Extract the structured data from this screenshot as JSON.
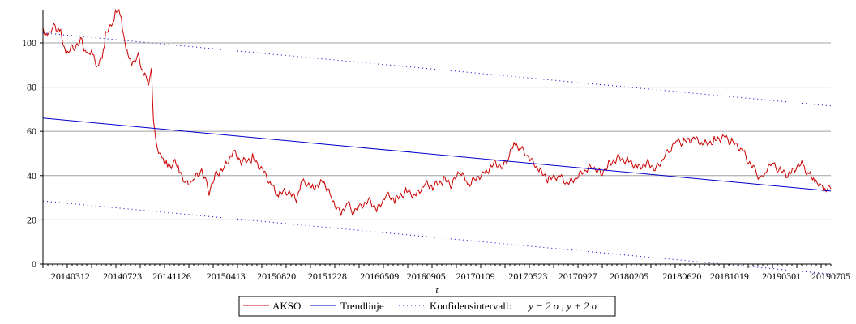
{
  "chart_data": {
    "type": "line",
    "title": "",
    "xlabel": "t",
    "ylabel": "",
    "xlim": [
      "2014-01-01",
      "2019-07-05"
    ],
    "ylim": [
      0,
      115
    ],
    "grid": "horizontal",
    "legend_position": "bottom",
    "x_tick_labels": [
      "20140312",
      "20140723",
      "20141126",
      "20150413",
      "20150820",
      "20151228",
      "20160509",
      "20160905",
      "20170109",
      "20170523",
      "20170927",
      "20180205",
      "20180620",
      "20181019",
      "20190301",
      "20190705"
    ],
    "y_ticks": [
      0,
      20,
      40,
      60,
      80,
      100
    ],
    "series": [
      {
        "name": "AKSO",
        "style": "solid",
        "color": "#cc0000",
        "points": [
          [
            "2014-01-01",
            106
          ],
          [
            "2014-01-15",
            103
          ],
          [
            "2014-02-01",
            108
          ],
          [
            "2014-02-15",
            104
          ],
          [
            "2014-03-01",
            95
          ],
          [
            "2014-03-20",
            98
          ],
          [
            "2014-04-10",
            101
          ],
          [
            "2014-04-25",
            94
          ],
          [
            "2014-05-08",
            96
          ],
          [
            "2014-05-20",
            89
          ],
          [
            "2014-06-01",
            93
          ],
          [
            "2014-06-10",
            104
          ],
          [
            "2014-06-25",
            107
          ],
          [
            "2014-07-05",
            115
          ],
          [
            "2014-07-20",
            112
          ],
          [
            "2014-08-01",
            96
          ],
          [
            "2014-08-15",
            91
          ],
          [
            "2014-09-01",
            94
          ],
          [
            "2014-09-15",
            86
          ],
          [
            "2014-09-28",
            82
          ],
          [
            "2014-10-05",
            90
          ],
          [
            "2014-10-10",
            64
          ],
          [
            "2014-10-20",
            52
          ],
          [
            "2014-11-01",
            48
          ],
          [
            "2014-11-15",
            44
          ],
          [
            "2014-12-01",
            46
          ],
          [
            "2014-12-15",
            43
          ],
          [
            "2015-01-01",
            36
          ],
          [
            "2015-01-20",
            38
          ],
          [
            "2015-02-10",
            42
          ],
          [
            "2015-03-01",
            33
          ],
          [
            "2015-03-20",
            41
          ],
          [
            "2015-04-10",
            44
          ],
          [
            "2015-05-01",
            51
          ],
          [
            "2015-05-25",
            46
          ],
          [
            "2015-06-20",
            48
          ],
          [
            "2015-07-15",
            43
          ],
          [
            "2015-08-10",
            35
          ],
          [
            "2015-08-25",
            31
          ],
          [
            "2015-09-15",
            33
          ],
          [
            "2015-10-10",
            29
          ],
          [
            "2015-10-25",
            38
          ],
          [
            "2015-11-20",
            35
          ],
          [
            "2015-12-20",
            37
          ],
          [
            "2016-01-10",
            29
          ],
          [
            "2016-02-01",
            23
          ],
          [
            "2016-02-15",
            28
          ],
          [
            "2016-03-01",
            24
          ],
          [
            "2016-03-20",
            26
          ],
          [
            "2016-04-10",
            29
          ],
          [
            "2016-05-05",
            25
          ],
          [
            "2016-05-25",
            31
          ],
          [
            "2016-06-20",
            29
          ],
          [
            "2016-07-15",
            33
          ],
          [
            "2016-08-10",
            31
          ],
          [
            "2016-09-01",
            36
          ],
          [
            "2016-09-25",
            35
          ],
          [
            "2016-10-20",
            38
          ],
          [
            "2016-11-10",
            36
          ],
          [
            "2016-12-01",
            42
          ],
          [
            "2016-12-20",
            36
          ],
          [
            "2017-01-10",
            39
          ],
          [
            "2017-02-05",
            42
          ],
          [
            "2017-03-01",
            46
          ],
          [
            "2017-03-20",
            44
          ],
          [
            "2017-04-05",
            49
          ],
          [
            "2017-04-20",
            55
          ],
          [
            "2017-05-05",
            52
          ],
          [
            "2017-05-25",
            48
          ],
          [
            "2017-06-20",
            42
          ],
          [
            "2017-07-15",
            38
          ],
          [
            "2017-08-10",
            40
          ],
          [
            "2017-09-01",
            36
          ],
          [
            "2017-09-25",
            39
          ],
          [
            "2017-10-15",
            42
          ],
          [
            "2017-11-05",
            44
          ],
          [
            "2017-11-25",
            41
          ],
          [
            "2017-12-15",
            45
          ],
          [
            "2018-01-05",
            48
          ],
          [
            "2018-02-01",
            47
          ],
          [
            "2018-03-01",
            44
          ],
          [
            "2018-03-25",
            46
          ],
          [
            "2018-04-15",
            43
          ],
          [
            "2018-05-05",
            48
          ],
          [
            "2018-05-20",
            52
          ],
          [
            "2018-06-05",
            56
          ],
          [
            "2018-06-25",
            55
          ],
          [
            "2018-07-20",
            57
          ],
          [
            "2018-08-15",
            54
          ],
          [
            "2018-09-10",
            56
          ],
          [
            "2018-10-05",
            58
          ],
          [
            "2018-10-25",
            55
          ],
          [
            "2018-11-20",
            52
          ],
          [
            "2018-12-10",
            45
          ],
          [
            "2018-12-25",
            42
          ],
          [
            "2019-01-10",
            38
          ],
          [
            "2019-01-20",
            43
          ],
          [
            "2019-02-05",
            46
          ],
          [
            "2019-02-25",
            42
          ],
          [
            "2019-03-20",
            40
          ],
          [
            "2019-04-10",
            44
          ],
          [
            "2019-04-25",
            45
          ],
          [
            "2019-05-10",
            40
          ],
          [
            "2019-05-25",
            38
          ],
          [
            "2019-06-10",
            35
          ],
          [
            "2019-06-20",
            34
          ],
          [
            "2019-07-05",
            34
          ]
        ]
      },
      {
        "name": "Trendlinje",
        "style": "solid",
        "color": "#0000cc",
        "points": [
          [
            "2014-01-01",
            66
          ],
          [
            "2019-07-05",
            33
          ]
        ]
      },
      {
        "name": "Konfidensintervall:",
        "legend_math": "y − 2 σ , y + 2 σ",
        "style": "dotted",
        "color": "#0000cc",
        "points": [
          [
            "2014-01-01",
            104.5
          ],
          [
            "2019-07-05",
            71.5
          ]
        ]
      },
      {
        "style": "dotted",
        "color": "#0000cc",
        "points": [
          [
            "2014-01-01",
            28.5
          ],
          [
            "2019-07-05",
            -4.5
          ]
        ]
      }
    ]
  }
}
